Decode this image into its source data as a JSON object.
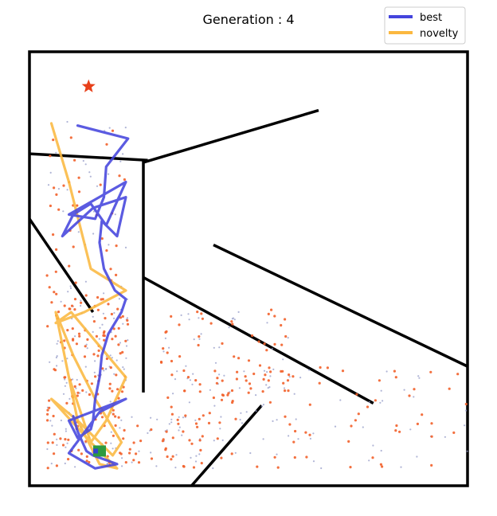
{
  "chart_data": {
    "type": "scatter",
    "title": "Generation : 4",
    "xlabel": "",
    "ylabel": "",
    "xlim": [
      0,
      200
    ],
    "ylim": [
      0,
      200
    ],
    "axes_visible": false,
    "legend": {
      "placement": "top-right",
      "entries": [
        {
          "label": "best",
          "color": "#4444dd"
        },
        {
          "label": "novelty",
          "color": "#fbb840"
        }
      ]
    },
    "colors": {
      "arena": "#000000",
      "best": "#4444dd",
      "novelty": "#fbb840",
      "novelty_points": "#f2602a",
      "archive_points": "#8f96c4",
      "goal": "#e8401a",
      "start_a": "#2e9a40",
      "start_b": "#3344cc"
    },
    "goal": {
      "symbol": "star",
      "x": 27,
      "y": 184
    },
    "start": {
      "x": 32,
      "y": 16
    },
    "walls": [
      [
        [
          0,
          153
        ],
        [
          54,
          150
        ]
      ],
      [
        [
          52,
          149
        ],
        [
          132,
          173
        ]
      ],
      [
        [
          52,
          150
        ],
        [
          52,
          43
        ]
      ],
      [
        [
          0,
          123
        ],
        [
          29,
          80
        ]
      ],
      [
        [
          84,
          111
        ],
        [
          200,
          55
        ]
      ],
      [
        [
          52,
          96
        ],
        [
          157,
          38
        ]
      ],
      [
        [
          106,
          37
        ],
        [
          74,
          0
        ]
      ]
    ],
    "series": [
      {
        "name": "best",
        "color": "#4444dd",
        "x": [
          22,
          45,
          35,
          34,
          30,
          18,
          44,
          35,
          28,
          20,
          15,
          29,
          44,
          40,
          33,
          32,
          34,
          39,
          44,
          42,
          36,
          33,
          32,
          30,
          29,
          28,
          22,
          18,
          44,
          32,
          18,
          30,
          40,
          29,
          26,
          22,
          20
        ],
        "y": [
          166,
          160,
          147,
          133,
          123,
          125,
          140,
          120,
          130,
          125,
          115,
          128,
          133,
          115,
          122,
          112,
          100,
          90,
          86,
          80,
          70,
          60,
          50,
          40,
          30,
          26,
          22,
          30,
          40,
          34,
          15,
          8,
          10,
          14,
          16,
          25,
          32
        ]
      },
      {
        "name": "novelty",
        "color": "#fbb840",
        "x": [
          10,
          18,
          28,
          44,
          25,
          12,
          19,
          44,
          35,
          28,
          10,
          22,
          32,
          40,
          28,
          18,
          12,
          22,
          38,
          42,
          30,
          20,
          12
        ],
        "y": [
          167,
          140,
          100,
          90,
          80,
          75,
          80,
          50,
          30,
          20,
          40,
          30,
          10,
          8,
          20,
          50,
          80,
          30,
          14,
          20,
          40,
          60,
          80
        ]
      }
    ]
  }
}
